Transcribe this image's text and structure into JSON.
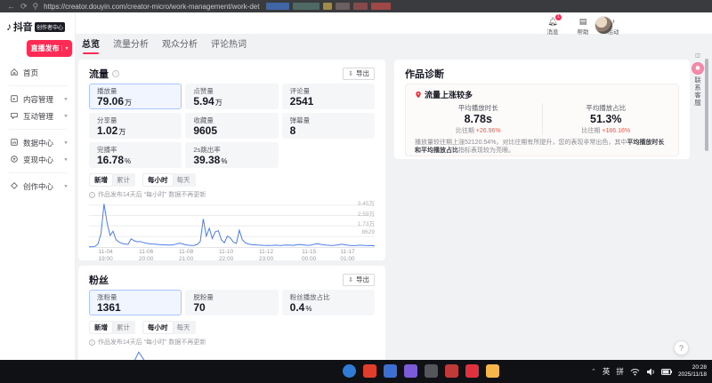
{
  "browser": {
    "url": "https://creator.douyin.com/creator-micro/work-management/work-det",
    "redactions": [
      "#3f67a8",
      "#4f6a63",
      "#a08a4a",
      "#6b5f5f",
      "#874a4a",
      "#a04848"
    ]
  },
  "sidebar": {
    "logo_text": "抖音",
    "logo_badge": "创作者中心",
    "publish_button": "直播发布",
    "items": [
      {
        "label": "首页",
        "icon": "home-icon"
      },
      {
        "label": "内容管理",
        "icon": "content-icon"
      },
      {
        "label": "互动管理",
        "icon": "interaction-icon"
      },
      {
        "label": "数据中心",
        "icon": "data-icon"
      },
      {
        "label": "变现中心",
        "icon": "monetize-icon"
      },
      {
        "label": "创作中心",
        "icon": "creation-icon"
      }
    ]
  },
  "header": {
    "actions": [
      {
        "label": "消息",
        "badge": "1",
        "icon": "bell-icon"
      },
      {
        "label": "帮助",
        "icon": "help-icon"
      },
      {
        "label": "活动",
        "icon": "activity-icon"
      }
    ]
  },
  "tabs": [
    {
      "label": "总览",
      "active": true
    },
    {
      "label": "流量分析",
      "active": false
    },
    {
      "label": "观众分析",
      "active": false
    },
    {
      "label": "评论热词",
      "active": false
    }
  ],
  "traffic": {
    "title": "流量",
    "export_label": "导出",
    "cards": [
      {
        "label": "播放量",
        "value": "79.06",
        "unit": "万",
        "selected": true
      },
      {
        "label": "点赞量",
        "value": "5.94",
        "unit": "万",
        "selected": false
      },
      {
        "label": "评论量",
        "value": "2541",
        "unit": "",
        "selected": false
      },
      {
        "label": "分享量",
        "value": "1.02",
        "unit": "万",
        "selected": false
      },
      {
        "label": "收藏量",
        "value": "9605",
        "unit": "",
        "selected": false
      },
      {
        "label": "弹幕量",
        "value": "8",
        "unit": "",
        "selected": false
      },
      {
        "label": "完播率",
        "value": "16.78",
        "unit": "%",
        "selected": false
      },
      {
        "label": "2s跳出率",
        "value": "39.38",
        "unit": "%",
        "selected": false
      }
    ],
    "toggle_group1": [
      "新增",
      "累计"
    ],
    "toggle_group2": [
      "每小时",
      "每天"
    ],
    "note": "作品发布14天后 “每小时” 数据不再更新"
  },
  "fans": {
    "title": "粉丝",
    "export_label": "导出",
    "cards": [
      {
        "label": "涨粉量",
        "value": "1361",
        "unit": "",
        "selected": true
      },
      {
        "label": "脱粉量",
        "value": "70",
        "unit": "",
        "selected": false
      },
      {
        "label": "粉丝播放占比",
        "value": "0.4",
        "unit": "%",
        "selected": false
      }
    ],
    "toggle_group1": [
      "新增",
      "累计"
    ],
    "toggle_group2": [
      "每小时",
      "每天"
    ],
    "note": "作品发布14天后 “每小时” 数据不再更新"
  },
  "diagnosis": {
    "title": "作品诊断",
    "tag": "流量上涨较多",
    "metrics": [
      {
        "label": "平均播放时长",
        "value": "8.78s",
        "compare_prefix": "比往期 ",
        "compare_value": "+26.96%"
      },
      {
        "label": "平均播放占比",
        "value": "51.3%",
        "compare_prefix": "比往期 ",
        "compare_value": "+186.16%"
      }
    ],
    "desc_part1": "播放量较往期上涨52120.54%，对比往期有所提升，您的表现非常出色，其中",
    "desc_bold": "平均播放时长和平均播放占比",
    "desc_part2": "指标表现较为亮眼。"
  },
  "float_widget": {
    "service_label": "联系客服",
    "help_glyph": "?"
  },
  "taskbar": {
    "icons": [
      {
        "name": "edge-browser-icon",
        "color": "#2f7cd6",
        "round": true
      },
      {
        "name": "wps-icon",
        "color": "#e03e2d",
        "round": false
      },
      {
        "name": "app-blue-icon",
        "color": "#3b6fd4",
        "round": false
      },
      {
        "name": "app-purple-icon",
        "color": "#7b5bd6",
        "round": false
      },
      {
        "name": "store-app-icon",
        "color": "#54565c",
        "round": false
      },
      {
        "name": "small-red-app-icon",
        "color": "#c03a3a",
        "round": false
      },
      {
        "name": "xiaohongshu-icon",
        "color": "#e1303e",
        "round": false
      },
      {
        "name": "folder-icon",
        "color": "#f7b64a",
        "round": false
      }
    ],
    "ime1": "英",
    "ime2": "拼",
    "time": "20:28",
    "date": "2025/11/18"
  },
  "chart_data": [
    {
      "type": "line",
      "title": "播放量-每小时新增趋势",
      "section": "流量",
      "metric": "播放量",
      "color": "#4d7cf0",
      "ymax": 36500,
      "grid": true,
      "gridlines": [
        {
          "value": 34500,
          "label": "3.45万"
        },
        {
          "value": 25900,
          "label": "2.59万"
        },
        {
          "value": 17300,
          "label": "1.73万"
        },
        {
          "value": 8629,
          "label": "8629"
        }
      ],
      "x_ticks": [
        {
          "pos": 5.8,
          "date": "11-04",
          "time": "19:00"
        },
        {
          "pos": 20,
          "date": "11-06",
          "time": "20:00"
        },
        {
          "pos": 34,
          "date": "11-08",
          "time": "21:00"
        },
        {
          "pos": 48,
          "date": "11-10",
          "time": "22:00"
        },
        {
          "pos": 62,
          "date": "11-12",
          "time": "23:00"
        },
        {
          "pos": 77,
          "date": "11-15",
          "time": "00:00"
        },
        {
          "pos": 90.5,
          "date": "11-17",
          "time": "01:00"
        }
      ],
      "values": [
        150,
        300,
        600,
        2500,
        11000,
        35500,
        20000,
        9500,
        13000,
        6000,
        4000,
        3000,
        2500,
        2200,
        6800,
        5200,
        4300,
        4600,
        3800,
        3200,
        2800,
        2500,
        2300,
        2100,
        1900,
        1800,
        1700,
        1600,
        1800,
        2400,
        3200,
        2600,
        1900,
        1500,
        1300,
        1400,
        2200,
        4500,
        23000,
        9000,
        15500,
        7000,
        12500,
        13500,
        6000,
        3500,
        9000,
        7500,
        4000,
        3000,
        13800,
        6000,
        3500,
        2500,
        2000,
        1800,
        1600,
        1500,
        1400,
        1350,
        1300,
        1400,
        1500,
        1400,
        1350,
        1500,
        1700,
        1500,
        1400,
        1800,
        2100,
        1800,
        1500,
        1400,
        1700,
        2400,
        2700,
        2200,
        1800,
        1500,
        1400,
        1300,
        1500,
        1900,
        2300,
        1900,
        1500,
        1300,
        1200,
        1300,
        1500,
        1400,
        1250,
        1150,
        1100,
        1000
      ]
    },
    {
      "type": "line",
      "title": "涨粉量-每小时新增趋势",
      "section": "粉丝",
      "metric": "涨粉量",
      "color": "#4d7cf0",
      "ymax": 350,
      "grid": false,
      "values": [
        3,
        5,
        15,
        60,
        330,
        140,
        55,
        30,
        20,
        15,
        12,
        10,
        9,
        8,
        8,
        7,
        7,
        6,
        6,
        5,
        5,
        5,
        4,
        4
      ]
    }
  ]
}
